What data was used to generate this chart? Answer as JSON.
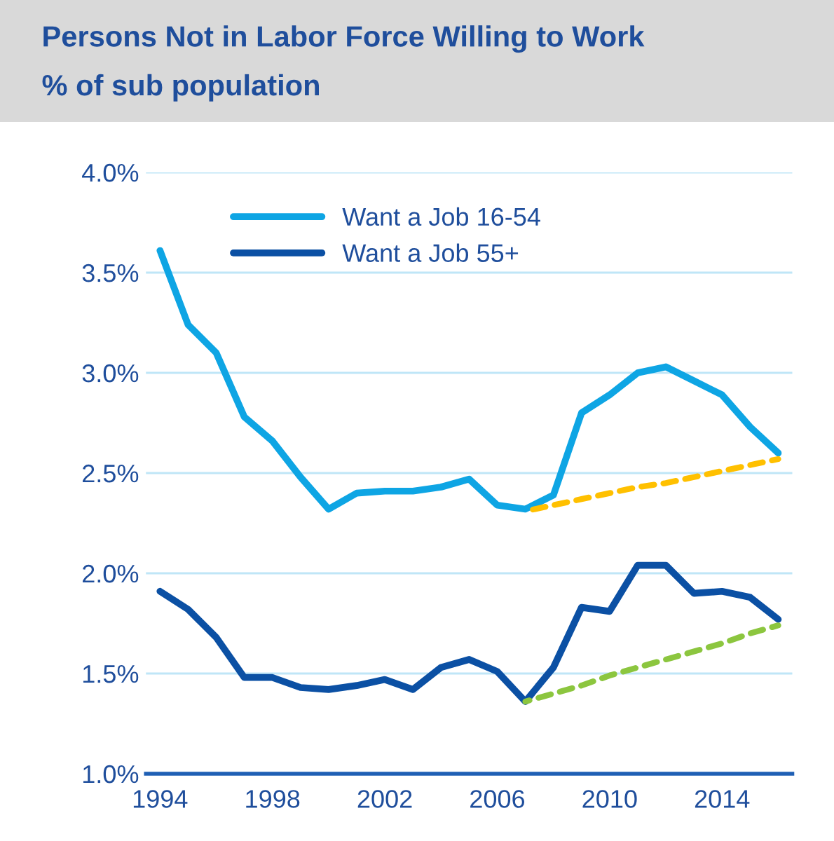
{
  "chart_data": {
    "type": "line",
    "title": "Persons Not in Labor Force Willing to Work",
    "subtitle": "% of sub population",
    "x": [
      1994,
      1995,
      1996,
      1997,
      1998,
      1999,
      2000,
      2001,
      2002,
      2003,
      2004,
      2005,
      2006,
      2007,
      2008,
      2009,
      2010,
      2011,
      2012,
      2013,
      2014,
      2015,
      2016
    ],
    "series": [
      {
        "name": "Want a Job 16-54",
        "color": "#0ea5e4",
        "values": [
          3.61,
          3.24,
          3.1,
          2.78,
          2.66,
          2.48,
          2.32,
          2.4,
          2.41,
          2.41,
          2.43,
          2.47,
          2.34,
          2.32,
          2.39,
          2.8,
          2.89,
          3.0,
          3.03,
          2.96,
          2.89,
          2.73,
          2.6
        ]
      },
      {
        "name": "Want a Job 55+",
        "color": "#0b50a4",
        "values": [
          1.91,
          1.82,
          1.68,
          1.48,
          1.48,
          1.43,
          1.42,
          1.44,
          1.47,
          1.42,
          1.53,
          1.57,
          1.51,
          1.36,
          1.53,
          1.83,
          1.81,
          2.04,
          2.04,
          1.9,
          1.91,
          1.88,
          1.77
        ]
      },
      {
        "color": "#ffc000",
        "line_style": "dashed",
        "values": [
          null,
          null,
          null,
          null,
          null,
          null,
          null,
          null,
          null,
          null,
          null,
          null,
          null,
          2.31,
          2.34,
          2.37,
          2.4,
          2.43,
          2.45,
          2.48,
          2.51,
          2.54,
          2.57
        ]
      },
      {
        "color": "#8cc63f",
        "line_style": "dashed",
        "values": [
          null,
          null,
          null,
          null,
          null,
          null,
          null,
          null,
          null,
          null,
          null,
          null,
          null,
          1.36,
          1.4,
          1.44,
          1.49,
          1.53,
          1.57,
          1.61,
          1.65,
          1.7,
          1.74
        ]
      }
    ],
    "xlim": [
      1993.5,
      2016.5
    ],
    "xticks": [
      1994,
      1998,
      2002,
      2006,
      2010,
      2014
    ],
    "ylim": [
      1.0,
      4.0
    ],
    "yticks": [
      {
        "value": 1.0,
        "label": "1.0%"
      },
      {
        "value": 1.5,
        "label": "1.5%"
      },
      {
        "value": 2.0,
        "label": "2.0%"
      },
      {
        "value": 2.5,
        "label": "2.5%"
      },
      {
        "value": 3.0,
        "label": "3.0%"
      },
      {
        "value": 3.5,
        "label": "3.5%"
      },
      {
        "value": 4.0,
        "label": "4.0%"
      }
    ],
    "grid": "y",
    "legend": "top left"
  }
}
